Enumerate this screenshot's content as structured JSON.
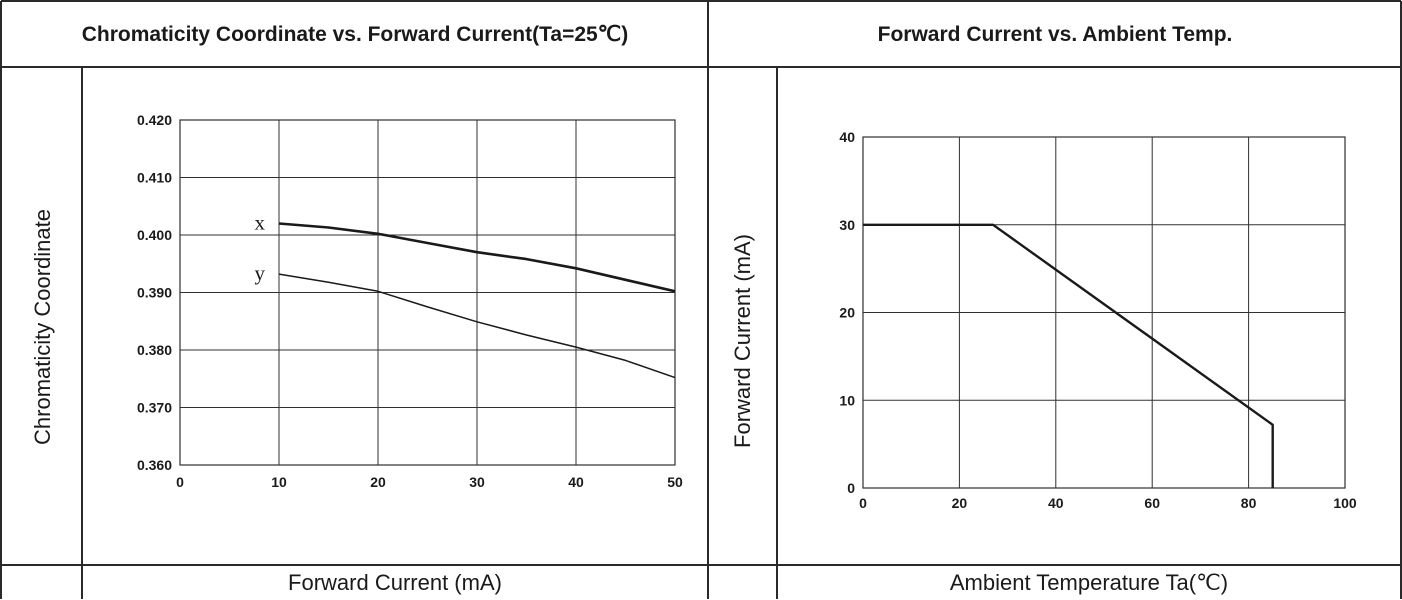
{
  "panels": {
    "left": {
      "title": "Chromaticity Coordinate vs. Forward Current(Ta=25℃)",
      "ylabel": "Chromaticity Coordinate",
      "xlabel": "Forward Current (mA)"
    },
    "right": {
      "title": "Forward Current vs. Ambient Temp.",
      "ylabel": "Forward Current (mA)",
      "xlabel": "Ambient Temperature Ta(℃)"
    }
  },
  "chart_data": [
    {
      "type": "line",
      "title": "Chromaticity Coordinate vs. Forward Current(Ta=25℃)",
      "xlabel": "Forward Current (mA)",
      "ylabel": "Chromaticity Coordinate",
      "xlim": [
        0,
        50
      ],
      "ylim": [
        0.36,
        0.42
      ],
      "xticks": [
        0,
        10,
        20,
        30,
        40,
        50
      ],
      "xtick_labels": [
        "0",
        "10",
        "20",
        "30",
        "40",
        "50"
      ],
      "yticks": [
        0.36,
        0.37,
        0.38,
        0.39,
        0.4,
        0.41,
        0.42
      ],
      "ytick_labels": [
        "0.360",
        "0.370",
        "0.380",
        "0.390",
        "0.400",
        "0.410",
        "0.420"
      ],
      "grid": true,
      "series": [
        {
          "name": "x",
          "x": [
            10,
            15,
            20,
            25,
            30,
            35,
            40,
            45,
            50
          ],
          "y": [
            0.402,
            0.4013,
            0.4002,
            0.3986,
            0.397,
            0.3958,
            0.3942,
            0.3922,
            0.3902
          ]
        },
        {
          "name": "y",
          "x": [
            10,
            15,
            20,
            25,
            30,
            35,
            40,
            45,
            50
          ],
          "y": [
            0.3932,
            0.3918,
            0.3902,
            0.3875,
            0.3849,
            0.3826,
            0.3805,
            0.3782,
            0.3752
          ]
        }
      ]
    },
    {
      "type": "line",
      "title": "Forward Current vs. Ambient Temp.",
      "xlabel": "Ambient Temperature Ta(℃)",
      "ylabel": "Forward Current (mA)",
      "xlim": [
        0,
        100
      ],
      "ylim": [
        0,
        40
      ],
      "xticks": [
        0,
        20,
        40,
        60,
        80,
        100
      ],
      "xtick_labels": [
        "0",
        "20",
        "40",
        "60",
        "80",
        "100"
      ],
      "yticks": [
        0,
        10,
        20,
        30,
        40
      ],
      "ytick_labels": [
        "0",
        "10",
        "20",
        "30",
        "40"
      ],
      "grid": true,
      "series": [
        {
          "x": [
            0,
            27,
            85,
            85
          ],
          "y": [
            30,
            30,
            7.2,
            0
          ]
        }
      ]
    }
  ]
}
